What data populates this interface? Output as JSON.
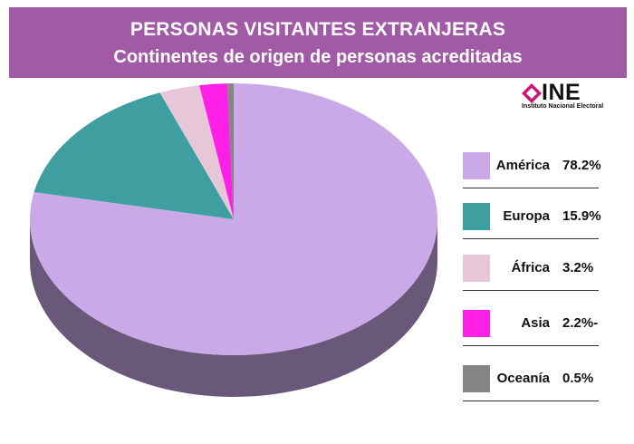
{
  "header": {
    "title": "PERSONAS VISITANTES EXTRANJERAS",
    "subtitle": "Continentes de origen de personas acreditadas"
  },
  "logo": {
    "text": "INE",
    "subtitle": "Instituto Nacional Electoral"
  },
  "colors": {
    "header_bg": "#a05aa6",
    "america": "#c9a9e8",
    "europa": "#3e9ea0",
    "africa": "#e7c6d8",
    "asia": "#ff20e8",
    "oceania": "#858585"
  },
  "chart_data": {
    "type": "pie",
    "title": "PERSONAS VISITANTES EXTRANJERAS",
    "subtitle": "Continentes de origen de personas acreditadas",
    "legend_position": "right",
    "style": "3d",
    "slices": [
      {
        "name": "América",
        "value": 78.2,
        "label": "78.2%",
        "color": "#c9a9e8"
      },
      {
        "name": "Europa",
        "value": 15.9,
        "label": "15.9%",
        "color": "#3e9ea0"
      },
      {
        "name": "África",
        "value": 3.2,
        "label": "3.2%",
        "color": "#e7c6d8"
      },
      {
        "name": "Asia",
        "value": 2.2,
        "label": "2.2%-",
        "color": "#ff20e8"
      },
      {
        "name": "Oceanía",
        "value": 0.5,
        "label": "0.5%",
        "color": "#858585"
      }
    ]
  }
}
